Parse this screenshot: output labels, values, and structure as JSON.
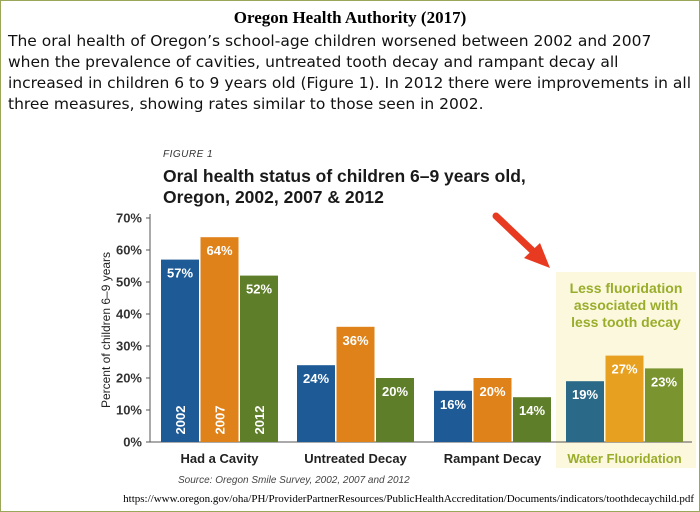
{
  "header": {
    "title": "Oregon Health Authority (2017)",
    "intro": "The oral health of Oregon’s school-age children worsened between 2002 and 2007 when the prevalence of cavities, untreated tooth decay and rampant decay all increased in children 6 to 9 years old (Figure 1). In 2012 there were improvements in all three measures, showing rates similar to those seen in 2002."
  },
  "figure": {
    "label": "FIGURE 1",
    "source": "Source: Oregon Smile Survey, 2002, 2007 and 2012"
  },
  "url": "https://www.oregon.gov/oha/PH/ProviderPartnerResources/PublicHealthAccreditation/Documents/indicators/toothdecaychild.pdf",
  "chart_data": {
    "type": "bar",
    "title": "Oral health status of children 6–9 years old, Oregon, 2002, 2007 & 2012",
    "title_lines": [
      "Oral health status of children 6–9 years old,",
      "Oregon, 2002, 2007 & 2012"
    ],
    "categories": [
      "Had a Cavity",
      "Untreated Decay",
      "Rampant Decay"
    ],
    "series": [
      {
        "name": "2002",
        "values": [
          57,
          24,
          16
        ],
        "color": "#1d5a96"
      },
      {
        "name": "2007",
        "values": [
          64,
          36,
          20
        ],
        "color": "#e0821a"
      },
      {
        "name": "2012",
        "values": [
          52,
          20,
          14
        ],
        "color": "#5f7e2a"
      }
    ],
    "value_labels": {
      "Had a Cavity": [
        "57%",
        "64%",
        "52%"
      ],
      "Untreated Decay": [
        "24%",
        "36%",
        "20%"
      ],
      "Rampant Decay": [
        "16%",
        "20%",
        "14%"
      ]
    },
    "ylabel": "Percent of children 6–9 years",
    "ylim": [
      0,
      70
    ],
    "yticks": [
      0,
      10,
      20,
      30,
      40,
      50,
      60,
      70
    ],
    "ytick_labels": [
      "0%",
      "10%",
      "20%",
      "30%",
      "40%",
      "50%",
      "60%",
      "70%"
    ],
    "annotation": {
      "category": "Water Fluoridation",
      "values": [
        19,
        27,
        23
      ],
      "value_labels": [
        "19%",
        "27%",
        "23%"
      ],
      "colors": [
        "#2a6a88",
        "#e8a020",
        "#7a9430"
      ],
      "text_lines": [
        "Less fluoridation",
        "associated with",
        "less tooth decay"
      ],
      "text_color": "#9aad2a",
      "background": "#fbf8de",
      "arrow_color": "#e83a20"
    }
  }
}
